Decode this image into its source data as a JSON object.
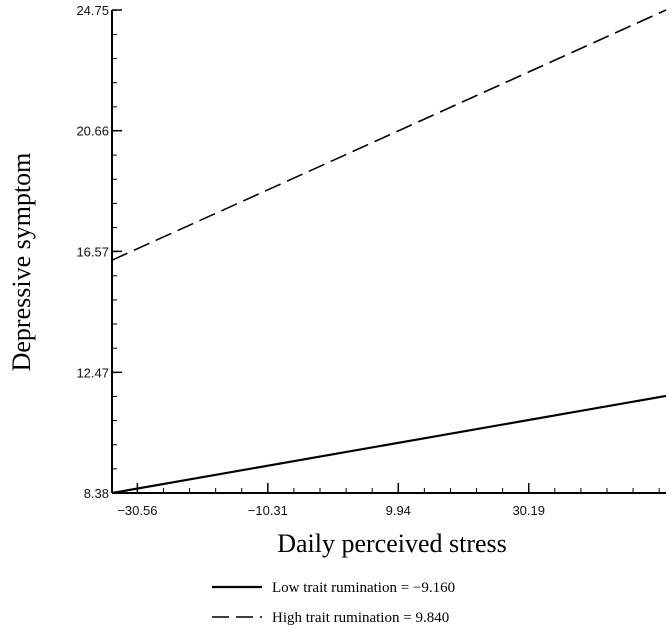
{
  "chart_data": {
    "type": "line",
    "title": "",
    "xlabel": "Daily perceived stress",
    "ylabel": "Depressive symptom",
    "xlim": [
      -34.5,
      51.5
    ],
    "ylim": [
      8.38,
      24.75
    ],
    "x_ticks": [
      -30.56,
      -10.31,
      9.94,
      30.19
    ],
    "x_tick_labels": [
      "-30.56",
      "-10.31",
      "9.94",
      "30.19"
    ],
    "y_ticks": [
      8.38,
      12.47,
      16.57,
      20.66,
      24.75
    ],
    "y_tick_labels": [
      "8.38",
      "12.47",
      "16.57",
      "20.66",
      "24.75"
    ],
    "grid": false,
    "legend_position": "bottom",
    "series": [
      {
        "name": "Low trait rumination = −9.160",
        "style": "solid",
        "color": "#000000",
        "x": [
          -34.5,
          51.5
        ],
        "y": [
          8.38,
          11.67
        ]
      },
      {
        "name": "High trait rumination = 9.840",
        "style": "dashed",
        "color": "#000000",
        "x": [
          -34.5,
          51.5
        ],
        "y": [
          16.27,
          24.75
        ]
      }
    ]
  }
}
